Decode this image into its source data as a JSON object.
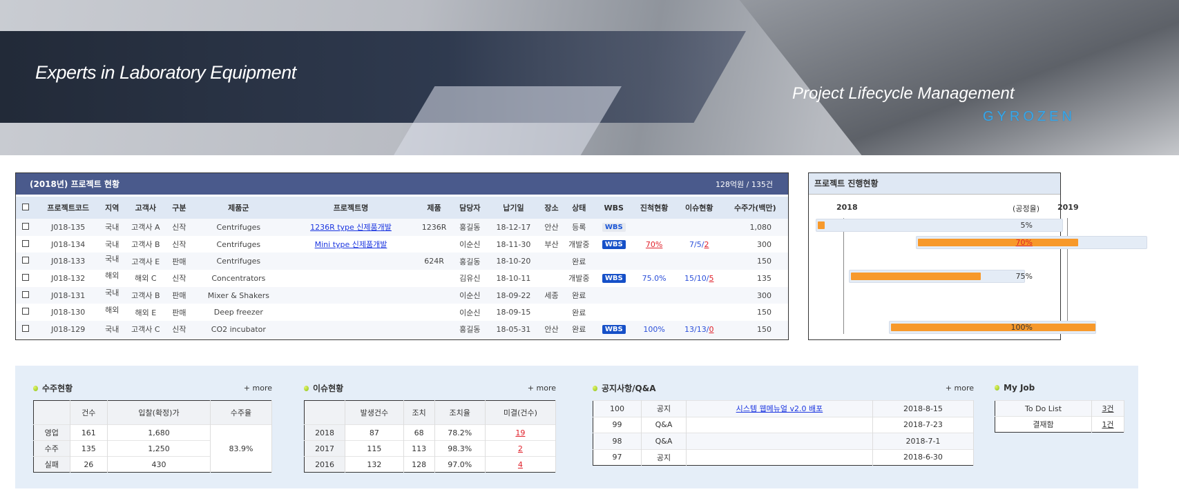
{
  "banner": {
    "slogan": "Experts in Laboratory Equipment",
    "subtitle": "Project Lifecycle Management",
    "logo": "GYROZEN"
  },
  "projects": {
    "title": "(2018년) 프로젝트 현황",
    "summary": "128억원 / 135건",
    "columns": [
      "프로젝트코드",
      "지역",
      "고객사",
      "구분",
      "제품군",
      "프로젝트명",
      "제품",
      "담당자",
      "납기일",
      "장소",
      "상태",
      "WBS",
      "진척현황",
      "이슈현황",
      "수주가(백만)"
    ],
    "rows": [
      {
        "code": "J018-135",
        "region": "국내",
        "client": "고객사 A",
        "type": "신작",
        "group": "Centrifuges",
        "name": "1236R type 신제품개발",
        "product": "1236R",
        "owner": "홍길동",
        "due": "18-12-17",
        "place": "안산",
        "status": "등록",
        "wbs": "WBS",
        "wbs_style": "light",
        "progress": "",
        "issue": [
          "",
          "",
          ""
        ],
        "price": "1,080"
      },
      {
        "code": "J018-134",
        "region": "국내",
        "client": "고객사 B",
        "type": "신작",
        "group": "Centrifuges",
        "name": "Mini type 신제품개발",
        "product": "",
        "owner": "이순신",
        "due": "18-11-30",
        "place": "부산",
        "status": "개발중",
        "wbs": "WBS",
        "wbs_style": "dark",
        "progress": "70%",
        "progress_alert": true,
        "issue": [
          "7",
          "5",
          "2"
        ],
        "price": "300"
      },
      {
        "code": "J018-133",
        "region": "국내",
        "client": "고객사 E",
        "type": "판매",
        "group": "Centrifuges",
        "name": "",
        "product": "624R",
        "owner": "홍길동",
        "due": "18-10-20",
        "place": "",
        "status": "완료",
        "wbs": "",
        "progress": "",
        "issue": [
          "",
          "",
          ""
        ],
        "price": "150"
      },
      {
        "code": "J018-132",
        "region": "해외",
        "client": "해외 C",
        "type": "신작",
        "group": "Concentrators",
        "name": "",
        "product": "",
        "owner": "김유신",
        "due": "18-10-11",
        "place": "",
        "status": "개발중",
        "wbs": "WBS",
        "wbs_style": "dark",
        "progress": "75.0%",
        "issue": [
          "15",
          "10",
          "5"
        ],
        "price": "135"
      },
      {
        "code": "J018-131",
        "region": "국내",
        "client": "고객사 B",
        "type": "판매",
        "group": "Mixer & Shakers",
        "name": "",
        "product": "",
        "owner": "이순신",
        "due": "18-09-22",
        "place": "세종",
        "status": "완료",
        "wbs": "",
        "progress": "",
        "issue": [
          "",
          "",
          ""
        ],
        "price": "300"
      },
      {
        "code": "J018-130",
        "region": "해외",
        "client": "해외 E",
        "type": "판매",
        "group": "Deep freezer",
        "name": "",
        "product": "",
        "owner": "이순신",
        "due": "18-09-15",
        "place": "",
        "status": "완료",
        "wbs": "",
        "progress": "",
        "issue": [
          "",
          "",
          ""
        ],
        "price": "150"
      },
      {
        "code": "J018-129",
        "region": "국내",
        "client": "고객사 C",
        "type": "신작",
        "group": "CO2 incubator",
        "name": "",
        "product": "",
        "owner": "홍길동",
        "due": "18-05-31",
        "place": "안산",
        "status": "완료",
        "wbs": "WBS",
        "wbs_style": "dark",
        "progress": "100%",
        "issue": [
          "13",
          "13",
          "0"
        ],
        "price": "150"
      }
    ]
  },
  "gantt": {
    "title": "프로젝트 진행현황",
    "years": [
      "2018",
      "2019"
    ],
    "unit_label": "(공정율)",
    "bars": [
      {
        "row": 0,
        "progress": 5,
        "label": "5%"
      },
      {
        "row": 1,
        "progress": 70,
        "label": "70%",
        "alert": true
      },
      {
        "row": 3,
        "progress": 75,
        "label": "75%"
      },
      {
        "row": 6,
        "progress": 100,
        "label": "100%"
      }
    ]
  },
  "orders": {
    "title": "수주현황",
    "more": "+ more",
    "columns": [
      "",
      "건수",
      "입찰(확정)가",
      "수주율"
    ],
    "rows": [
      [
        "영업",
        "161",
        "1,680"
      ],
      [
        "수주",
        "135",
        "1,250"
      ],
      [
        "실패",
        "26",
        "430"
      ]
    ],
    "rate": "83.9%"
  },
  "issues": {
    "title": "이슈현황",
    "more": "+ more",
    "columns": [
      "",
      "발생건수",
      "조치",
      "조치율",
      "미결(건수)"
    ],
    "rows": [
      [
        "2018",
        "87",
        "68",
        "78.2%",
        "19"
      ],
      [
        "2017",
        "115",
        "113",
        "98.3%",
        "2"
      ],
      [
        "2016",
        "132",
        "128",
        "97.0%",
        "4"
      ]
    ]
  },
  "notices": {
    "title": "공지사항/Q&A",
    "more": "+ more",
    "rows": [
      [
        "100",
        "공지",
        "시스템 웹메뉴얼 v2.0 배포",
        "2018-8-15"
      ],
      [
        "99",
        "Q&A",
        "",
        "2018-7-23"
      ],
      [
        "98",
        "Q&A",
        "",
        "2018-7-1"
      ],
      [
        "97",
        "공지",
        "",
        "2018-6-30"
      ]
    ]
  },
  "myjob": {
    "title": "My Job",
    "rows": [
      [
        "To Do List",
        "3건"
      ],
      [
        "결재함",
        "1건"
      ]
    ]
  },
  "colors": {
    "header": "#4a5a8c",
    "bar": "#f7992b",
    "alert": "#e0202a",
    "link": "#1a35e0"
  }
}
